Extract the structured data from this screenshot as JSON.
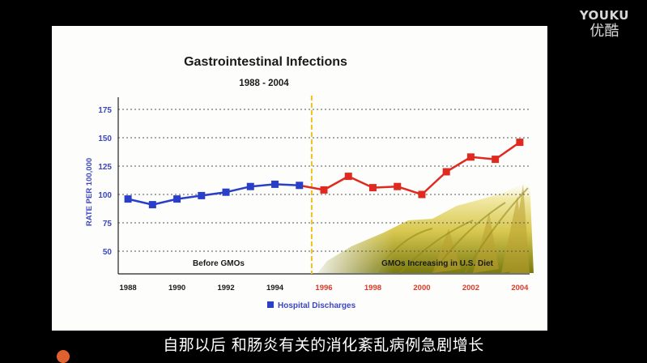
{
  "watermark": {
    "brand": "YOUKU",
    "brand_cn": "优酷"
  },
  "subtitle": "自那以后 和肠炎有关的消化紊乱病例急剧增长",
  "colors": {
    "before_series": "#2a3fc8",
    "after_series": "#e02a20",
    "divider": "#f0c020",
    "axis_blue": "#3b46c0",
    "axis_red": "#d93a2a",
    "title": "#1a1a1a"
  },
  "chart_data": {
    "type": "line",
    "title": "Gastrointestinal Infections",
    "subtitle": "1988 - 2004",
    "ylabel": "RATE  PER  100,000",
    "xlabel": "",
    "ylim": [
      30,
      180
    ],
    "yticks": [
      50,
      75,
      100,
      125,
      150,
      175
    ],
    "xticks": [
      1988,
      1990,
      1992,
      1994,
      1996,
      1998,
      2000,
      2002,
      2004
    ],
    "xlim": [
      1987.6,
      2004.4
    ],
    "grid": true,
    "divider_year": 1995.5,
    "region_labels": {
      "before": "Before GMOs",
      "after": "GMOs Increasing in U.S. Diet"
    },
    "legend": {
      "label": "Hospital Discharges",
      "position": "bottom-center"
    },
    "series": [
      {
        "segment": "before",
        "x": [
          1988,
          1989,
          1990,
          1991,
          1992,
          1993,
          1994,
          1995
        ],
        "values": [
          96,
          91,
          96,
          99,
          102,
          107,
          109,
          108
        ]
      },
      {
        "segment": "after",
        "x": [
          1995,
          1996,
          1997,
          1998,
          1999,
          2000,
          2001,
          2002,
          2003,
          2004
        ],
        "values": [
          108,
          104,
          116,
          106,
          107,
          100,
          120,
          133,
          131,
          146
        ]
      }
    ]
  }
}
